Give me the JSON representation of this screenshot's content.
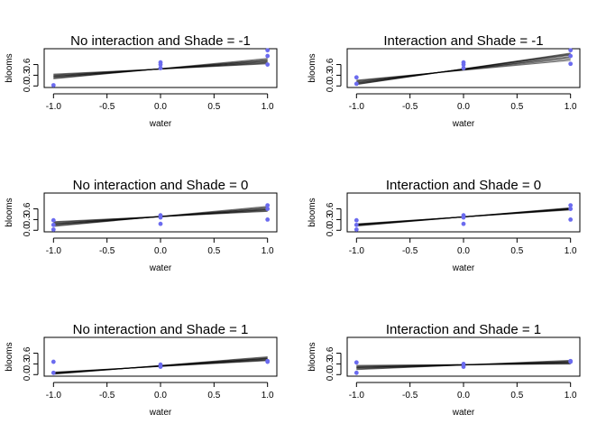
{
  "colors": {
    "points": "#6b6bef",
    "lines": "#000000"
  },
  "chart_data": [
    {
      "type": "scatter",
      "title": "No interaction and Shade = -1",
      "xlabel": "water",
      "ylabel": "blooms",
      "xlim": [
        -1.0,
        1.0
      ],
      "ylim": [
        0.0,
        1.0
      ],
      "xticks": [
        "-1.0",
        "-0.5",
        "0.0",
        "0.5",
        "1.0"
      ],
      "yticks": [
        "0.0",
        "0.3",
        "0.6"
      ],
      "points": [
        [
          -1,
          0.02
        ],
        [
          0,
          0.66
        ],
        [
          0,
          0.6
        ],
        [
          0,
          0.5
        ],
        [
          1,
          1.0
        ],
        [
          1,
          0.84
        ],
        [
          1,
          0.6
        ]
      ],
      "lines": [
        [
          0.27,
          0.68
        ],
        [
          0.24,
          0.72
        ],
        [
          0.31,
          0.64
        ],
        [
          0.22,
          0.74
        ],
        [
          0.29,
          0.66
        ],
        [
          0.26,
          0.7
        ],
        [
          0.33,
          0.62
        ],
        [
          0.2,
          0.77
        ]
      ]
    },
    {
      "type": "scatter",
      "title": "Interaction and Shade = -1",
      "xlabel": "water",
      "ylabel": "blooms",
      "xlim": [
        -1.0,
        1.0
      ],
      "ylim": [
        0.0,
        1.0
      ],
      "xticks": [
        "-1.0",
        "-0.5",
        "0.0",
        "0.5",
        "1.0"
      ],
      "yticks": [
        "0.0",
        "0.3",
        "0.6"
      ],
      "points": [
        [
          -1,
          0.24
        ],
        [
          -1,
          0.06
        ],
        [
          0,
          0.66
        ],
        [
          0,
          0.6
        ],
        [
          0,
          0.5
        ],
        [
          1,
          1.0
        ],
        [
          1,
          0.84
        ],
        [
          1,
          0.62
        ]
      ],
      "lines": [
        [
          0.1,
          0.82
        ],
        [
          0.05,
          0.9
        ],
        [
          0.14,
          0.76
        ],
        [
          0.08,
          0.86
        ],
        [
          0.12,
          0.8
        ],
        [
          0.04,
          0.92
        ],
        [
          0.16,
          0.72
        ],
        [
          0.07,
          0.88
        ]
      ]
    },
    {
      "type": "scatter",
      "title": "No interaction and Shade = 0",
      "xlabel": "water",
      "ylabel": "blooms",
      "xlim": [
        -1.0,
        1.0
      ],
      "ylim": [
        0.0,
        1.0
      ],
      "xticks": [
        "-1.0",
        "-0.5",
        "0.0",
        "0.5",
        "1.0"
      ],
      "yticks": [
        "0.0",
        "0.3",
        "0.6"
      ],
      "points": [
        [
          -1,
          0.28
        ],
        [
          -1,
          0.15
        ],
        [
          -1,
          0.02
        ],
        [
          0,
          0.42
        ],
        [
          0,
          0.36
        ],
        [
          0,
          0.18
        ],
        [
          1,
          0.7
        ],
        [
          1,
          0.6
        ],
        [
          1,
          0.3
        ]
      ],
      "lines": [
        [
          0.18,
          0.58
        ],
        [
          0.15,
          0.62
        ],
        [
          0.22,
          0.55
        ],
        [
          0.13,
          0.64
        ],
        [
          0.2,
          0.57
        ],
        [
          0.17,
          0.6
        ],
        [
          0.24,
          0.53
        ],
        [
          0.11,
          0.67
        ]
      ]
    },
    {
      "type": "scatter",
      "title": "Interaction and Shade = 0",
      "xlabel": "water",
      "ylabel": "blooms",
      "xlim": [
        -1.0,
        1.0
      ],
      "ylim": [
        0.0,
        1.0
      ],
      "xticks": [
        "-1.0",
        "-0.5",
        "0.0",
        "0.5",
        "1.0"
      ],
      "yticks": [
        "0.0",
        "0.3",
        "0.6"
      ],
      "points": [
        [
          -1,
          0.28
        ],
        [
          -1,
          0.15
        ],
        [
          -1,
          0.02
        ],
        [
          0,
          0.42
        ],
        [
          0,
          0.36
        ],
        [
          0,
          0.18
        ],
        [
          1,
          0.7
        ],
        [
          1,
          0.6
        ],
        [
          1,
          0.3
        ]
      ],
      "lines": [
        [
          0.15,
          0.6
        ],
        [
          0.13,
          0.62
        ],
        [
          0.17,
          0.58
        ],
        [
          0.14,
          0.61
        ],
        [
          0.16,
          0.59
        ],
        [
          0.12,
          0.63
        ],
        [
          0.18,
          0.57
        ],
        [
          0.15,
          0.61
        ]
      ]
    },
    {
      "type": "scatter",
      "title": "No interaction and Shade = 1",
      "xlabel": "water",
      "ylabel": "blooms",
      "xlim": [
        -1.0,
        1.0
      ],
      "ylim": [
        0.0,
        1.0
      ],
      "xticks": [
        "-1.0",
        "-0.5",
        "0.0",
        "0.5",
        "1.0"
      ],
      "yticks": [
        "0.0",
        "0.3",
        "0.6"
      ],
      "points": [
        [
          -1,
          0.36
        ],
        [
          -1,
          0.05
        ],
        [
          0,
          0.28
        ],
        [
          0,
          0.22
        ],
        [
          1,
          0.38
        ],
        [
          1,
          0.36
        ]
      ],
      "lines": [
        [
          0.04,
          0.44
        ],
        [
          0.02,
          0.48
        ],
        [
          0.06,
          0.41
        ],
        [
          0.03,
          0.46
        ],
        [
          0.05,
          0.42
        ],
        [
          0.01,
          0.5
        ],
        [
          0.07,
          0.39
        ],
        [
          0.04,
          0.45
        ]
      ]
    },
    {
      "type": "scatter",
      "title": "Interaction and Shade = 1",
      "xlabel": "water",
      "ylabel": "blooms",
      "xlim": [
        -1.0,
        1.0
      ],
      "ylim": [
        0.0,
        1.0
      ],
      "xticks": [
        "-1.0",
        "-0.5",
        "0.0",
        "0.5",
        "1.0"
      ],
      "yticks": [
        "0.0",
        "0.3",
        "0.6"
      ],
      "points": [
        [
          -1,
          0.34
        ],
        [
          -1,
          0.05
        ],
        [
          0,
          0.3
        ],
        [
          0,
          0.22
        ],
        [
          1,
          0.38
        ],
        [
          1,
          0.36
        ]
      ],
      "lines": [
        [
          0.2,
          0.34
        ],
        [
          0.16,
          0.38
        ],
        [
          0.24,
          0.31
        ],
        [
          0.18,
          0.36
        ],
        [
          0.22,
          0.33
        ],
        [
          0.14,
          0.4
        ],
        [
          0.26,
          0.3
        ],
        [
          0.2,
          0.36
        ]
      ]
    }
  ]
}
